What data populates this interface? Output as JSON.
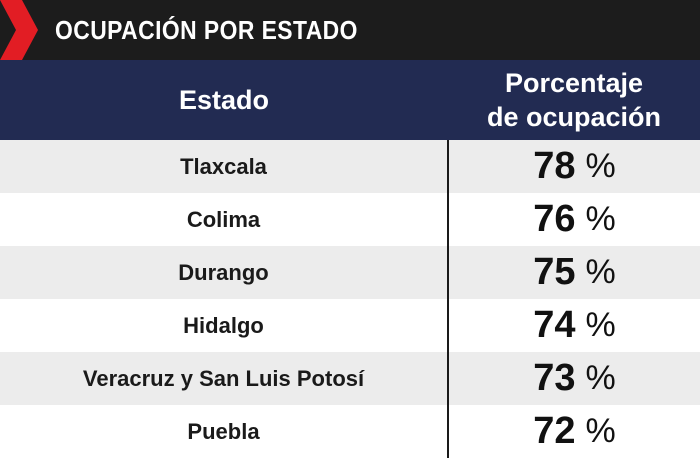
{
  "banner": {
    "title": "OCUPACIÓN POR ESTADO",
    "accent_color": "#e21d24",
    "background": "#1c1c1c"
  },
  "header": {
    "col_state": "Estado",
    "col_pct_line1": "Porcentaje",
    "col_pct_line2": "de ocupación",
    "background": "#222b52"
  },
  "chart_data": {
    "type": "table",
    "title": "OCUPACIÓN POR ESTADO",
    "columns": [
      "Estado",
      "Porcentaje de ocupación"
    ],
    "rows": [
      {
        "state": "Tlaxcala",
        "value": 78,
        "unit": "%"
      },
      {
        "state": "Colima",
        "value": 76,
        "unit": "%"
      },
      {
        "state": "Durango",
        "value": 75,
        "unit": "%"
      },
      {
        "state": "Hidalgo",
        "value": 74,
        "unit": "%"
      },
      {
        "state": "Veracruz y San Luis Potosí",
        "value": 73,
        "unit": "%"
      },
      {
        "state": "Puebla",
        "value": 72,
        "unit": "%"
      }
    ]
  }
}
